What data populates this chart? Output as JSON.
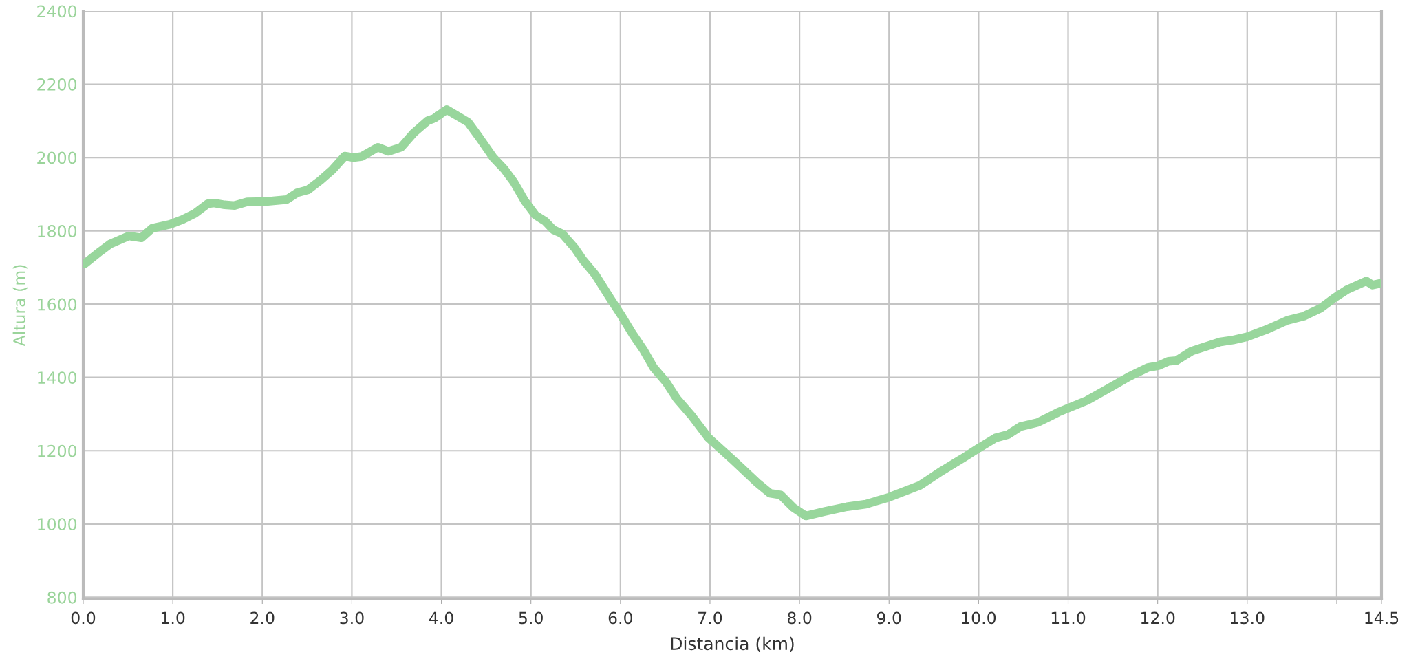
{
  "chart_data": {
    "type": "line",
    "xlabel": "Distancia (km)",
    "ylabel": "Altura (m)",
    "x": [
      0.02,
      0.19,
      0.3,
      0.51,
      0.65,
      0.77,
      0.97,
      1.11,
      1.25,
      1.39,
      1.46,
      1.58,
      1.69,
      1.83,
      2.04,
      2.27,
      2.39,
      2.51,
      2.65,
      2.78,
      2.92,
      3.02,
      3.11,
      3.29,
      3.41,
      3.55,
      3.69,
      3.85,
      3.92,
      4.06,
      4.19,
      4.3,
      4.42,
      4.58,
      4.7,
      4.81,
      4.93,
      5.05,
      5.16,
      5.25,
      5.35,
      5.49,
      5.58,
      5.72,
      5.88,
      6.0,
      6.14,
      6.26,
      6.37,
      6.51,
      6.63,
      6.79,
      6.98,
      7.26,
      7.53,
      7.67,
      7.79,
      7.93,
      8.07,
      8.28,
      8.53,
      8.74,
      9.0,
      9.35,
      9.59,
      9.82,
      10.0,
      10.19,
      10.33,
      10.47,
      10.66,
      10.89,
      11.21,
      11.45,
      11.68,
      11.89,
      12.01,
      12.12,
      12.21,
      12.38,
      12.52,
      12.7,
      12.84,
      13.0,
      13.21,
      13.45,
      13.63,
      13.82,
      13.98,
      14.12,
      14.33,
      14.4,
      14.49
    ],
    "series": [
      {
        "color": "#98d69c",
        "values": [
          1711,
          1744,
          1764,
          1786,
          1781,
          1807,
          1818,
          1831,
          1848,
          1874,
          1876,
          1871,
          1869,
          1879,
          1880,
          1885,
          1904,
          1912,
          1938,
          1966,
          2004,
          2000,
          2003,
          2028,
          2017,
          2028,
          2067,
          2101,
          2107,
          2131,
          2112,
          2096,
          2056,
          2000,
          1969,
          1933,
          1882,
          1843,
          1826,
          1803,
          1792,
          1753,
          1721,
          1680,
          1618,
          1573,
          1517,
          1474,
          1427,
          1387,
          1342,
          1297,
          1236,
          1174,
          1112,
          1084,
          1079,
          1045,
          1022,
          1034,
          1047,
          1054,
          1073,
          1106,
          1145,
          1179,
          1207,
          1235,
          1244,
          1266,
          1277,
          1305,
          1337,
          1370,
          1402,
          1427,
          1432,
          1444,
          1446,
          1472,
          1483,
          1497,
          1502,
          1511,
          1530,
          1556,
          1567,
          1589,
          1618,
          1640,
          1663,
          1652,
          1657
        ]
      }
    ],
    "xlim": [
      0,
      14.5
    ],
    "xticks": [
      {
        "value": 0,
        "label": "0.0"
      },
      {
        "value": 1,
        "label": "1.0"
      },
      {
        "value": 2,
        "label": "2.0"
      },
      {
        "value": 3,
        "label": "3.0"
      },
      {
        "value": 4,
        "label": "4.0"
      },
      {
        "value": 5,
        "label": "5.0"
      },
      {
        "value": 6,
        "label": "6.0"
      },
      {
        "value": 7,
        "label": "7.0"
      },
      {
        "value": 8,
        "label": "8.0"
      },
      {
        "value": 9,
        "label": "9.0"
      },
      {
        "value": 10,
        "label": "10.0"
      },
      {
        "value": 11,
        "label": "11.0"
      },
      {
        "value": 12,
        "label": "12.0"
      },
      {
        "value": 13,
        "label": "13.0"
      },
      {
        "value": 14,
        "label": null
      },
      {
        "value": 14.5,
        "label": "14.5"
      }
    ],
    "ylim": [
      795,
      2400
    ],
    "yticks": [
      800,
      1000,
      1200,
      1400,
      1600,
      1800,
      2000,
      2200,
      2400
    ],
    "grid": true,
    "line_style": "solid",
    "legend": false
  }
}
